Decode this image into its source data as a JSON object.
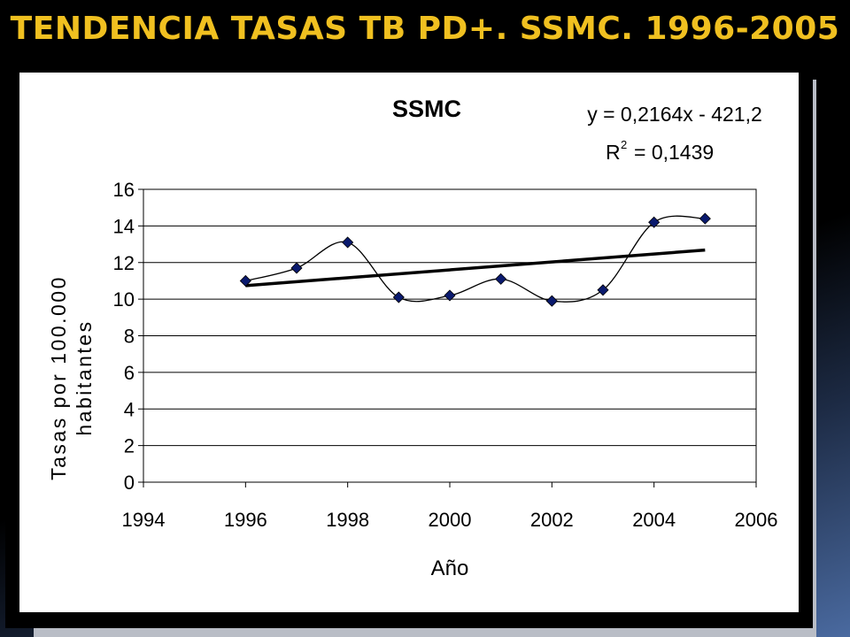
{
  "slide": {
    "title": "TENDENCIA TASAS TB PD+. SSMC. 1996-2005",
    "title_color": "#f0c020"
  },
  "chart_data": {
    "type": "scatter",
    "title": "SSMC",
    "xlabel": "Año",
    "ylabel_lines": [
      "Tasas por 100.000",
      "habitantes"
    ],
    "xlim": [
      1994,
      2006
    ],
    "ylim": [
      0,
      16
    ],
    "x_ticks": [
      1994,
      1996,
      1998,
      2000,
      2002,
      2004,
      2006
    ],
    "y_ticks": [
      0,
      2,
      4,
      6,
      8,
      10,
      12,
      14,
      16
    ],
    "grid": "horizontal",
    "series": [
      {
        "x": [
          1996,
          1997,
          1998,
          1999,
          2000,
          2001,
          2002,
          2003,
          2004,
          2005
        ],
        "y": [
          11.0,
          11.7,
          13.1,
          10.1,
          10.2,
          11.1,
          9.9,
          10.5,
          14.2,
          14.4
        ],
        "marker": "diamond",
        "color": "#0a1a6e",
        "line": "smooth",
        "line_color": "#000000"
      }
    ],
    "trendline": {
      "type": "linear",
      "slope": 0.2164,
      "intercept": -421.2,
      "x_range": [
        1996,
        2005
      ],
      "color": "#000000",
      "equation_text": "y = 0,2164x - 421,2",
      "r2_text": "= 0,1439"
    }
  }
}
